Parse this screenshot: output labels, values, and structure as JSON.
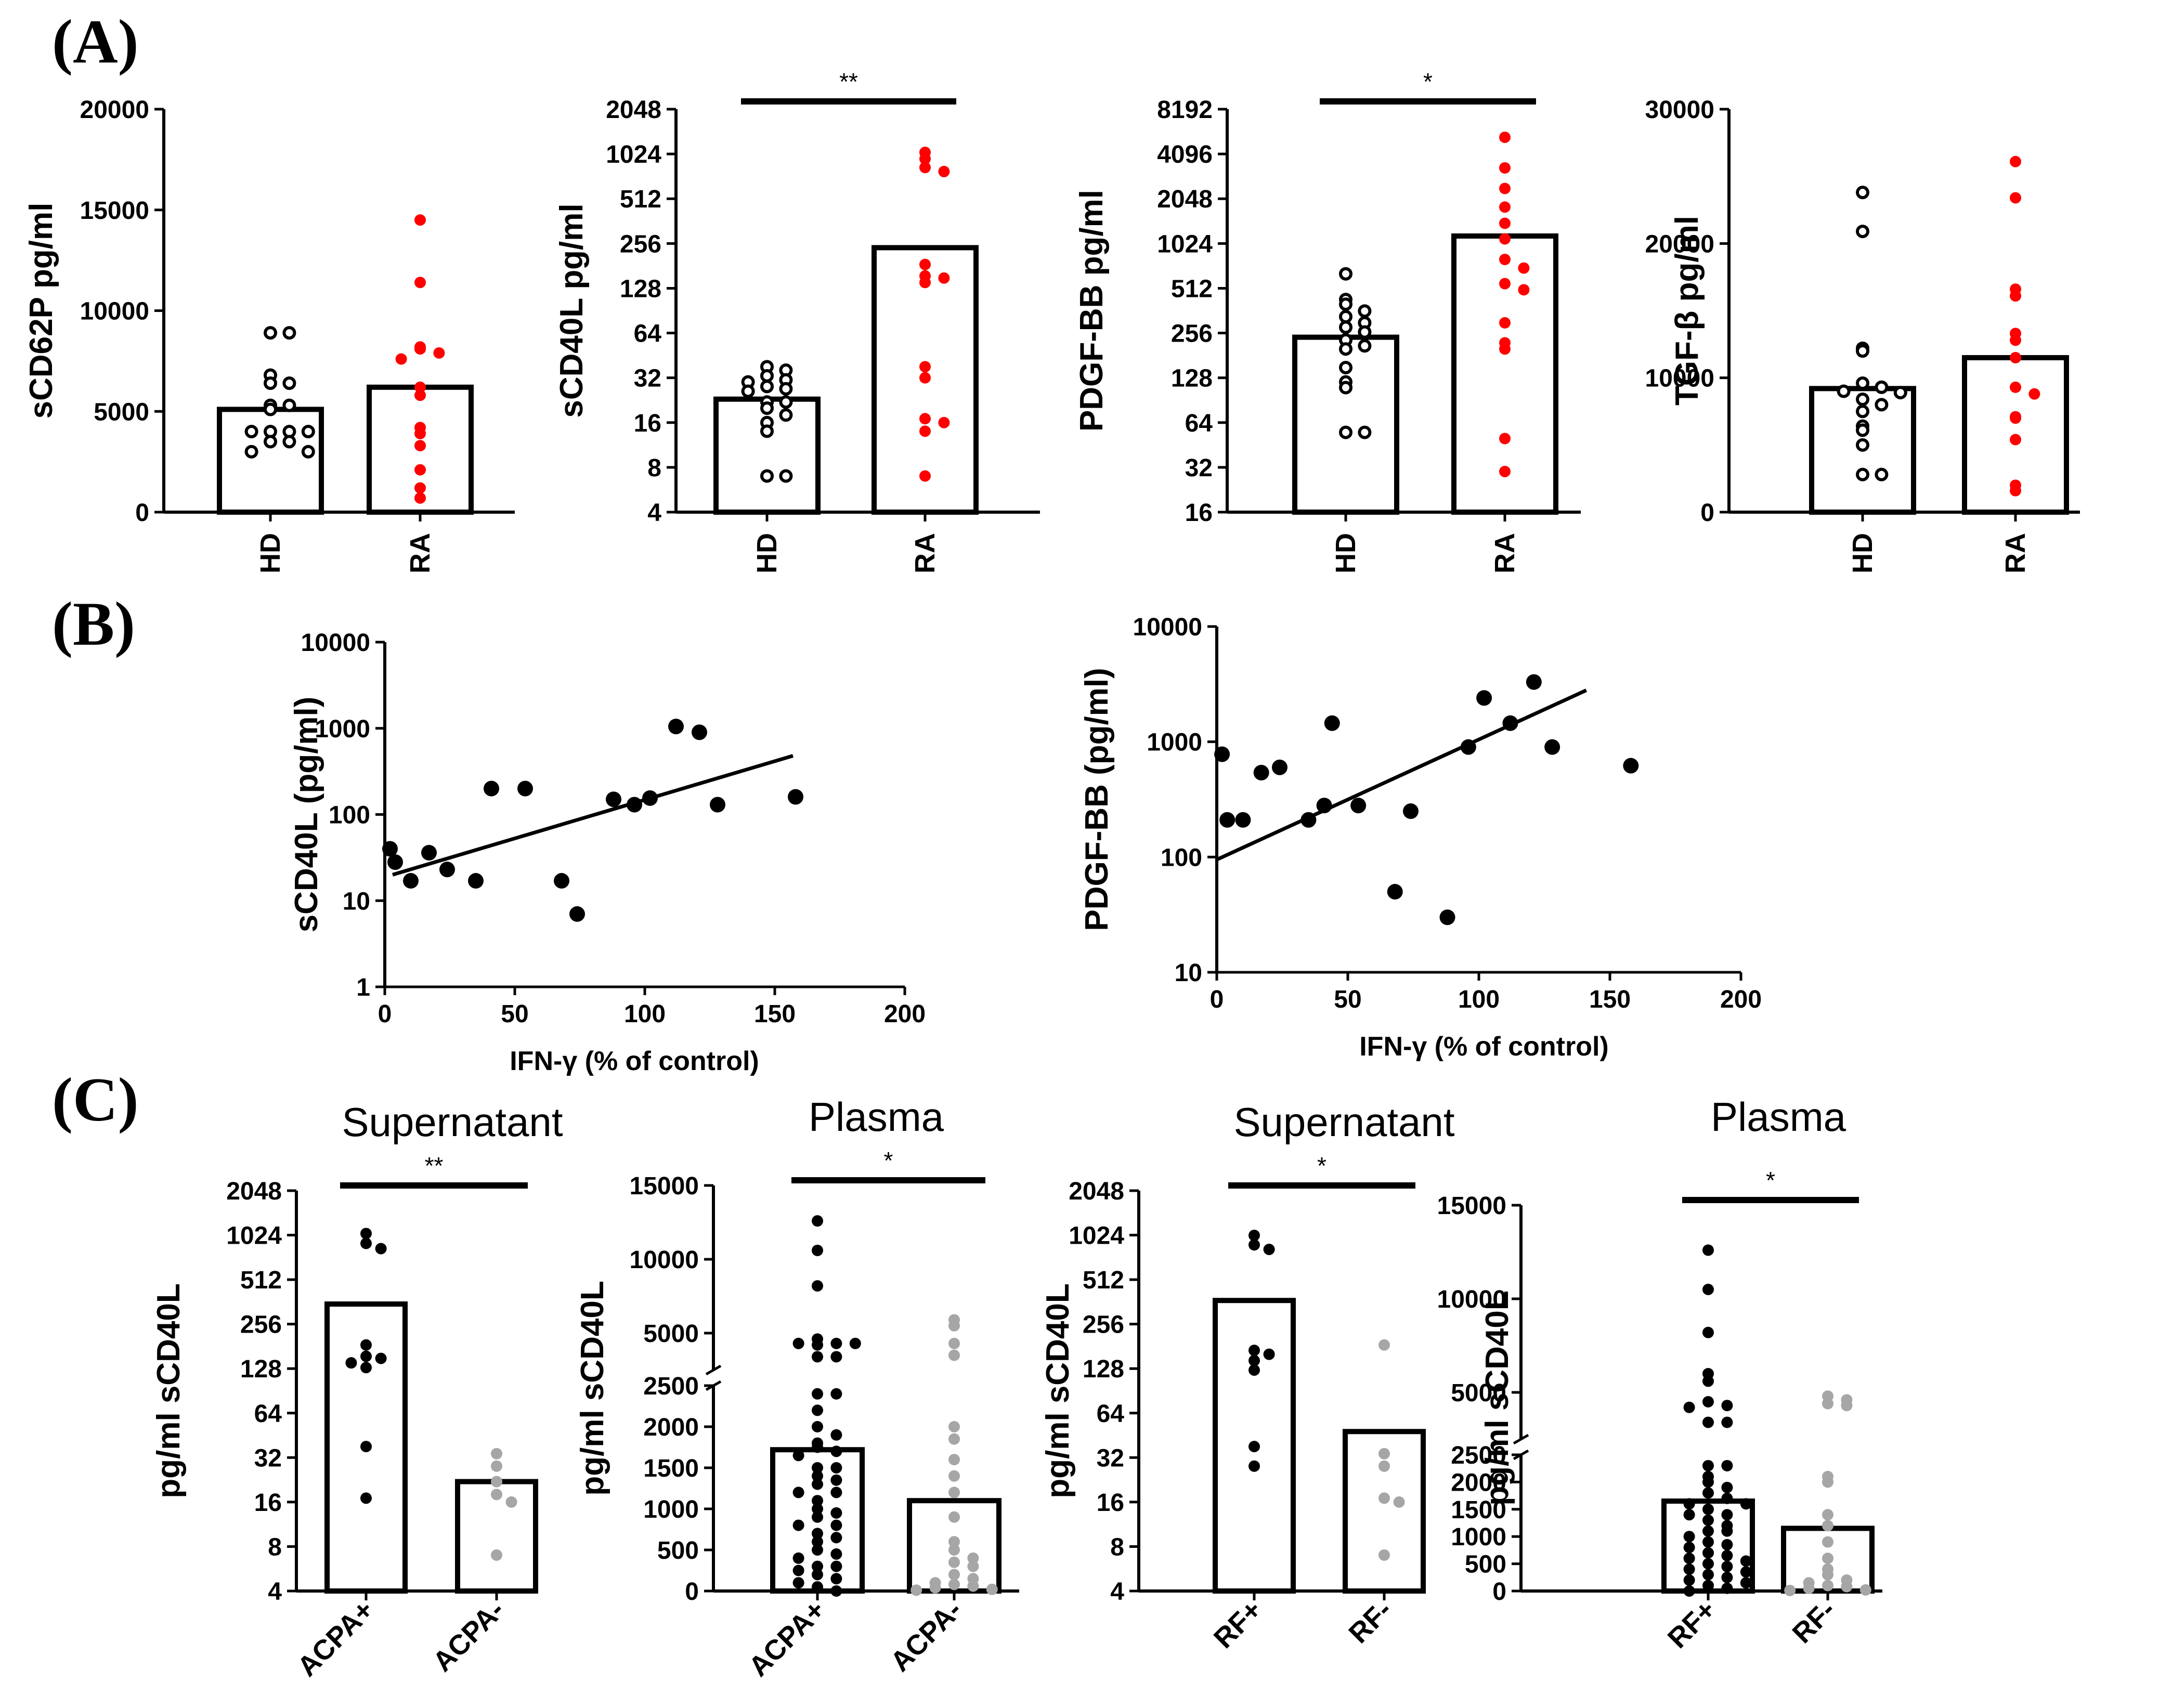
{
  "panel_labels": [
    "(A)",
    "(B)",
    "(C)"
  ],
  "colors": {
    "hd": "#000000",
    "ra": "#ff0000",
    "pos": "#000000",
    "neg": "#a6a6a6"
  },
  "chart_data": [
    {
      "id": "a1",
      "type": "bar",
      "panel": "(A)",
      "scale": "linear",
      "title": "",
      "ylabel": "sCD62P pg/ml",
      "ylim": [
        0,
        20000
      ],
      "yticks": [
        0,
        5000,
        10000,
        15000,
        20000
      ],
      "categories": [
        "HD",
        "RA"
      ],
      "bar_values": [
        5100,
        6200
      ],
      "points": [
        [
          8900,
          8900,
          6800,
          6400,
          6400,
          5300,
          5300,
          5100,
          4000,
          4000,
          4000,
          4000,
          3500,
          3500,
          3000,
          3000
        ],
        [
          14500,
          11400,
          8200,
          8100,
          7900,
          7600,
          6200,
          5800,
          4200,
          3900,
          3300,
          2100,
          1200,
          700
        ]
      ],
      "marker": [
        "open",
        "red"
      ],
      "significance": ""
    },
    {
      "id": "a2",
      "type": "bar",
      "panel": "(A)",
      "scale": "log2",
      "title": "",
      "ylabel": "sCD40L pg/ml",
      "ylim": [
        4,
        2048
      ],
      "yticks": [
        4,
        8,
        16,
        32,
        64,
        128,
        256,
        512,
        1024,
        2048
      ],
      "categories": [
        "HD",
        "RA"
      ],
      "bar_values": [
        23,
        240
      ],
      "points": [
        [
          38,
          36,
          33,
          31,
          30,
          28,
          27,
          26,
          22,
          22,
          20,
          18,
          16,
          14,
          7,
          7
        ],
        [
          1050,
          950,
          830,
          780,
          185,
          155,
          150,
          140,
          38,
          32,
          17,
          16,
          14,
          7
        ]
      ],
      "marker": [
        "open",
        "red"
      ],
      "significance": "**"
    },
    {
      "id": "a3",
      "type": "bar",
      "panel": "(A)",
      "scale": "log2",
      "title": "",
      "ylabel": "PDGF-BB pg/ml",
      "ylim": [
        16,
        8192
      ],
      "yticks": [
        16,
        32,
        64,
        128,
        256,
        512,
        1024,
        2048,
        4096,
        8192
      ],
      "categories": [
        "HD",
        "RA"
      ],
      "bar_values": [
        240,
        1150
      ],
      "points": [
        [
          640,
          430,
          400,
          360,
          330,
          300,
          280,
          260,
          230,
          210,
          200,
          150,
          120,
          110,
          55,
          55
        ],
        [
          5300,
          3300,
          2400,
          1800,
          1400,
          1100,
          800,
          700,
          550,
          500,
          300,
          220,
          200,
          50,
          30
        ]
      ],
      "marker": [
        "open",
        "red"
      ],
      "significance": "*"
    },
    {
      "id": "a4",
      "type": "bar",
      "panel": "(A)",
      "scale": "linear",
      "title": "",
      "ylabel": "TGF-β pg/ml",
      "ylim": [
        0,
        30000
      ],
      "yticks": [
        0,
        10000,
        20000,
        30000
      ],
      "categories": [
        "HD",
        "RA"
      ],
      "bar_values": [
        9200,
        11500
      ],
      "points": [
        [
          23800,
          20900,
          12200,
          12000,
          9600,
          9300,
          9000,
          8900,
          8400,
          8000,
          7500,
          6400,
          6100,
          5000,
          2800,
          2800
        ],
        [
          26100,
          23400,
          16600,
          16100,
          13300,
          12800,
          11500,
          9300,
          8800,
          7100,
          7000,
          5400,
          2000,
          1600
        ]
      ],
      "marker": [
        "open",
        "red"
      ],
      "significance": ""
    },
    {
      "id": "b1",
      "type": "scatter",
      "panel": "(B)",
      "scale": "log10",
      "title": "",
      "xlabel": "IFN-γ (% of control)",
      "ylabel": "sCD40L (pg/ml)",
      "xlim": [
        0,
        200
      ],
      "xticks": [
        0,
        50,
        100,
        150,
        200
      ],
      "ylim": [
        1,
        10000
      ],
      "yticks": [
        1,
        10,
        100,
        1000,
        10000
      ],
      "ytick_labels": [
        "1",
        "10",
        "100",
        "1000",
        "10000"
      ],
      "x": [
        2,
        4,
        10,
        17,
        24,
        35,
        41,
        54,
        68,
        74,
        88,
        96,
        102,
        112,
        121,
        128,
        158
      ],
      "y": [
        40,
        28,
        17,
        36,
        23,
        17,
        200,
        200,
        17,
        7,
        150,
        130,
        155,
        1050,
        900,
        130,
        160
      ],
      "fit": {
        "x": [
          3,
          157
        ],
        "y": [
          20,
          480
        ]
      }
    },
    {
      "id": "b2",
      "type": "scatter",
      "panel": "(B)",
      "scale": "log10",
      "title": "",
      "xlabel": "IFN-γ (% of control)",
      "ylabel": "PDGF-BB (pg/ml)",
      "xlim": [
        0,
        200
      ],
      "xticks": [
        0,
        50,
        100,
        150,
        200
      ],
      "ylim": [
        10,
        10000
      ],
      "yticks": [
        10,
        100,
        1000,
        10000
      ],
      "ytick_labels": [
        "10",
        "100",
        "1000",
        "10000"
      ],
      "x": [
        2,
        4,
        10,
        17,
        24,
        35,
        41,
        44,
        54,
        68,
        74,
        88,
        96,
        102,
        112,
        121,
        128,
        158
      ],
      "y": [
        780,
        210,
        210,
        540,
        600,
        210,
        280,
        1450,
        280,
        50,
        250,
        30,
        900,
        2400,
        1450,
        3300,
        900,
        620
      ],
      "fit": {
        "x": [
          0,
          141
        ],
        "y": [
          95,
          2800
        ]
      }
    },
    {
      "id": "c1",
      "type": "bar",
      "panel": "(C)",
      "scale": "log2",
      "title": "Supernatant",
      "ylabel": "pg/ml sCD40L",
      "ylim": [
        4,
        2048
      ],
      "yticks": [
        4,
        8,
        16,
        32,
        64,
        128,
        256,
        512,
        1024,
        2048
      ],
      "categories": [
        "ACPA+",
        "ACPA-"
      ],
      "bar_values": [
        350,
        22
      ],
      "points": [
        [
          1050,
          900,
          830,
          185,
          155,
          150,
          130,
          140,
          38,
          17
        ],
        [
          34,
          28,
          22,
          18,
          16,
          7
        ]
      ],
      "marker": [
        "black",
        "grey"
      ],
      "significance": "**"
    },
    {
      "id": "c2",
      "type": "bar",
      "panel": "(C)",
      "scale": "broken",
      "title": "Plasma",
      "ylabel": "pg/ml sCD40L",
      "ylim_lower": [
        0,
        2500
      ],
      "ylim_upper": [
        2500,
        15000
      ],
      "yticks": [
        0,
        500,
        1000,
        1500,
        2000,
        2500,
        5000,
        10000,
        15000
      ],
      "categories": [
        "ACPA+",
        "ACPA-"
      ],
      "bar_values": [
        1720,
        1100
      ],
      "points": [
        [
          12600,
          10600,
          8200,
          4600,
          4300,
          4300,
          4300,
          4200,
          3400,
          3400,
          2400,
          2400,
          2200,
          2000,
          1900,
          1800,
          1750,
          1700,
          1650,
          1500,
          1500,
          1400,
          1350,
          1300,
          1200,
          1200,
          1100,
          1000,
          950,
          900,
          800,
          800,
          700,
          650,
          600,
          500,
          450,
          400,
          300,
          300,
          250,
          200,
          150,
          100,
          50,
          0
        ],
        [
          5900,
          5500,
          4300,
          3500,
          2000,
          1850,
          1600,
          1400,
          1200,
          900,
          600,
          500,
          400,
          350,
          300,
          200,
          150,
          100,
          80,
          60,
          40,
          20,
          10
        ]
      ],
      "marker": [
        "black",
        "grey"
      ],
      "significance": "*"
    },
    {
      "id": "c3",
      "type": "bar",
      "panel": "(C)",
      "scale": "log2",
      "title": "Supernatant",
      "ylabel": "pg/ml sCD40L",
      "ylim": [
        4,
        2048
      ],
      "yticks": [
        4,
        8,
        16,
        32,
        64,
        128,
        256,
        512,
        1024,
        2048
      ],
      "categories": [
        "RF+",
        "RF-"
      ],
      "bar_values": [
        370,
        48
      ],
      "points": [
        [
          1020,
          880,
          820,
          170,
          160,
          145,
          125,
          38,
          28
        ],
        [
          185,
          34,
          28,
          17,
          16,
          7
        ]
      ],
      "marker": [
        "black",
        "grey"
      ],
      "significance": "*"
    },
    {
      "id": "c4",
      "type": "bar",
      "panel": "(C)",
      "scale": "broken",
      "title": "Plasma",
      "ylabel": "pg/ml sCD40L",
      "ylim_lower": [
        0,
        2500
      ],
      "ylim_upper": [
        2500,
        15000
      ],
      "yticks": [
        0,
        500,
        1000,
        1500,
        2000,
        2500,
        5000,
        10000,
        15000
      ],
      "categories": [
        "RF+",
        "RF-"
      ],
      "bar_values": [
        1650,
        1150
      ],
      "points": [
        [
          12600,
          10500,
          8200,
          6000,
          5600,
          4500,
          4300,
          4200,
          3400,
          3400,
          2300,
          2300,
          2100,
          2000,
          1900,
          1800,
          1700,
          1600,
          1600,
          1500,
          1400,
          1400,
          1300,
          1200,
          1100,
          1100,
          1000,
          900,
          850,
          800,
          700,
          650,
          600,
          550,
          500,
          450,
          400,
          350,
          300,
          250,
          200,
          150,
          100,
          50,
          0
        ],
        [
          4800,
          4600,
          4400,
          4300,
          2100,
          2000,
          1400,
          1200,
          900,
          600,
          400,
          300,
          200,
          150,
          100,
          80,
          50,
          20,
          10
        ]
      ],
      "marker": [
        "black",
        "grey"
      ],
      "significance": "*"
    }
  ]
}
